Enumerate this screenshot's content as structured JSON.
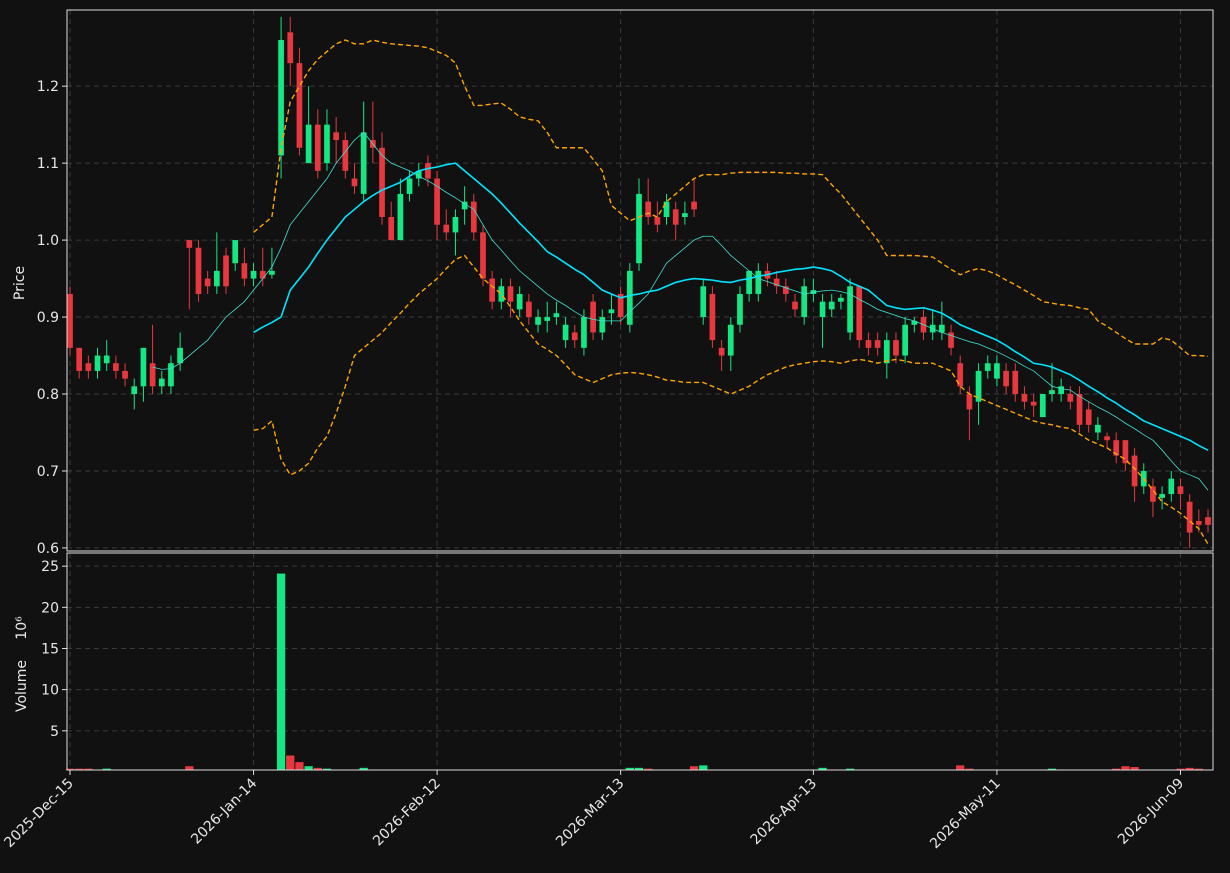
{
  "chart_data": {
    "type": "candlestick",
    "ylabel": "Price",
    "volume_label": "Volume",
    "volume_scale": "10⁶",
    "up_color": "#14e884",
    "down_color": "#e8383f",
    "grid": true,
    "ylim": [
      0.596,
      1.299
    ],
    "yticks": [
      0.6,
      0.7,
      0.8,
      0.9,
      {
        "value": 1,
        "label": "1.0"
      },
      1.1,
      1.2
    ],
    "volume_ylim": [
      0.24,
      26.6
    ],
    "volume_yticks": [
      5,
      10,
      15,
      20,
      25
    ],
    "categories": [
      "2025-Dec-15",
      null,
      null,
      null,
      null,
      null,
      null,
      null,
      null,
      null,
      null,
      null,
      null,
      null,
      null,
      null,
      null,
      null,
      null,
      null,
      "2026-Jan-14",
      null,
      null,
      null,
      null,
      null,
      null,
      null,
      null,
      null,
      null,
      null,
      null,
      null,
      null,
      null,
      null,
      null,
      null,
      null,
      "2026-Feb-12",
      null,
      null,
      null,
      null,
      null,
      null,
      null,
      null,
      null,
      null,
      null,
      null,
      null,
      null,
      null,
      null,
      null,
      null,
      null,
      "2026-Mar-13",
      null,
      null,
      null,
      null,
      null,
      null,
      null,
      null,
      null,
      null,
      null,
      null,
      null,
      null,
      null,
      null,
      null,
      null,
      null,
      null,
      "2026-Apr-13",
      null,
      null,
      null,
      null,
      null,
      null,
      null,
      null,
      null,
      null,
      null,
      null,
      null,
      null,
      null,
      null,
      null,
      null,
      null,
      "2026-May-11",
      null,
      null,
      null,
      null,
      null,
      null,
      null,
      null,
      null,
      null,
      null,
      null,
      null,
      null,
      null,
      null,
      null,
      null,
      null,
      "2026-Jun-09",
      null,
      null,
      null
    ],
    "open": [
      0.93,
      0.86,
      0.84,
      0.83,
      0.84,
      0.84,
      0.83,
      0.8,
      0.81,
      0.84,
      0.81,
      0.81,
      0.84,
      1.0,
      0.99,
      0.95,
      0.94,
      0.98,
      0.97,
      0.97,
      0.95,
      0.96,
      0.955,
      1.11,
      1.27,
      1.23,
      1.1,
      1.15,
      1.1,
      1.14,
      1.13,
      1.08,
      1.06,
      1.13,
      1.12,
      1.03,
      1.0,
      1.06,
      1.08,
      1.1,
      1.08,
      1.02,
      1.01,
      1.04,
      1.05,
      1.01,
      0.95,
      0.92,
      0.94,
      0.91,
      0.92,
      0.89,
      0.895,
      0.9,
      0.87,
      0.88,
      0.86,
      0.92,
      0.88,
      0.905,
      0.93,
      0.89,
      0.97,
      1.05,
      1.03,
      1.03,
      1.04,
      1.03,
      1.05,
      0.9,
      0.93,
      0.86,
      0.85,
      0.89,
      0.93,
      0.93,
      0.96,
      0.95,
      0.94,
      0.92,
      0.9,
      0.93,
      0.9,
      0.91,
      0.92,
      0.88,
      0.94,
      0.87,
      0.87,
      0.84,
      0.87,
      0.85,
      0.89,
      0.9,
      0.88,
      0.88,
      0.88,
      0.84,
      0.8,
      0.79,
      0.83,
      0.82,
      0.83,
      0.83,
      0.8,
      0.79,
      0.77,
      0.8,
      0.8,
      0.8,
      0.8,
      0.78,
      0.75,
      0.745,
      0.74,
      0.74,
      0.72,
      0.68,
      0.68,
      0.665,
      0.67,
      0.68,
      0.66,
      0.635,
      0.64
    ],
    "high": [
      0.94,
      0.86,
      0.85,
      0.86,
      0.87,
      0.85,
      0.84,
      0.82,
      0.86,
      0.89,
      0.83,
      0.85,
      0.88,
      1.0,
      1.0,
      0.96,
      1.01,
      0.99,
      1.0,
      0.99,
      0.97,
      0.99,
      0.99,
      1.29,
      1.29,
      1.25,
      1.2,
      1.17,
      1.17,
      1.16,
      1.14,
      1.1,
      1.18,
      1.18,
      1.14,
      1.05,
      1.08,
      1.09,
      1.1,
      1.11,
      1.09,
      1.04,
      1.04,
      1.07,
      1.06,
      1.02,
      0.96,
      0.95,
      0.95,
      0.94,
      0.93,
      0.91,
      0.92,
      0.92,
      0.9,
      0.89,
      0.91,
      0.93,
      0.91,
      0.93,
      0.94,
      0.97,
      1.08,
      1.08,
      1.05,
      1.06,
      1.05,
      1.05,
      1.08,
      0.95,
      0.94,
      0.87,
      0.9,
      0.94,
      0.96,
      0.97,
      0.97,
      0.96,
      0.95,
      0.93,
      0.95,
      0.95,
      0.93,
      0.93,
      0.93,
      0.95,
      0.94,
      0.88,
      0.88,
      0.88,
      0.88,
      0.9,
      0.9,
      0.91,
      0.91,
      0.92,
      0.89,
      0.85,
      0.81,
      0.84,
      0.85,
      0.85,
      0.84,
      0.84,
      0.81,
      0.8,
      0.8,
      0.84,
      0.82,
      0.81,
      0.81,
      0.79,
      0.77,
      0.75,
      0.75,
      0.74,
      0.73,
      0.71,
      0.69,
      0.68,
      0.7,
      0.69,
      0.67,
      0.65,
      0.65
    ],
    "low": [
      0.85,
      0.82,
      0.82,
      0.82,
      0.83,
      0.82,
      0.81,
      0.78,
      0.79,
      0.8,
      0.8,
      0.8,
      0.83,
      0.91,
      0.92,
      0.93,
      0.93,
      0.93,
      0.96,
      0.94,
      0.94,
      0.94,
      0.95,
      1.08,
      1.2,
      1.11,
      1.1,
      1.08,
      1.09,
      1.1,
      1.08,
      1.06,
      1.05,
      1.1,
      1.02,
      1.0,
      1.0,
      1.05,
      1.07,
      1.07,
      1.0,
      1.0,
      0.98,
      1.02,
      1.0,
      0.94,
      0.91,
      0.91,
      0.9,
      0.9,
      0.89,
      0.88,
      0.88,
      0.89,
      0.86,
      0.86,
      0.85,
      0.87,
      0.87,
      0.89,
      0.89,
      0.88,
      0.96,
      1.02,
      1.01,
      1.02,
      1.0,
      1.02,
      1.03,
      0.89,
      0.86,
      0.83,
      0.83,
      0.88,
      0.92,
      0.92,
      0.94,
      0.93,
      0.92,
      0.9,
      0.89,
      0.92,
      0.86,
      0.9,
      0.91,
      0.87,
      0.86,
      0.85,
      0.85,
      0.82,
      0.84,
      0.84,
      0.88,
      0.87,
      0.87,
      0.87,
      0.85,
      0.8,
      0.74,
      0.76,
      0.82,
      0.81,
      0.8,
      0.79,
      0.78,
      0.77,
      0.77,
      0.79,
      0.79,
      0.78,
      0.75,
      0.75,
      0.74,
      0.73,
      0.71,
      0.7,
      0.66,
      0.67,
      0.64,
      0.65,
      0.66,
      0.65,
      0.6,
      0.62,
      0.62
    ],
    "close": [
      0.86,
      0.83,
      0.83,
      0.85,
      0.85,
      0.83,
      0.82,
      0.81,
      0.86,
      0.81,
      0.82,
      0.84,
      0.86,
      0.99,
      0.93,
      0.94,
      0.96,
      0.94,
      1.0,
      0.95,
      0.96,
      0.95,
      0.96,
      1.26,
      1.23,
      1.12,
      1.15,
      1.09,
      1.15,
      1.13,
      1.09,
      1.07,
      1.14,
      1.12,
      1.03,
      1.0,
      1.06,
      1.08,
      1.09,
      1.08,
      1.02,
      1.01,
      1.03,
      1.05,
      1.01,
      0.95,
      0.92,
      0.94,
      0.92,
      0.93,
      0.9,
      0.9,
      0.9,
      0.905,
      0.89,
      0.87,
      0.9,
      0.88,
      0.9,
      0.91,
      0.9,
      0.96,
      1.06,
      1.03,
      1.02,
      1.05,
      1.02,
      1.035,
      1.04,
      0.94,
      0.87,
      0.85,
      0.89,
      0.93,
      0.96,
      0.96,
      0.95,
      0.94,
      0.93,
      0.91,
      0.94,
      0.935,
      0.92,
      0.92,
      0.925,
      0.94,
      0.87,
      0.86,
      0.86,
      0.87,
      0.85,
      0.89,
      0.895,
      0.88,
      0.89,
      0.89,
      0.86,
      0.81,
      0.78,
      0.83,
      0.84,
      0.84,
      0.81,
      0.8,
      0.79,
      0.785,
      0.8,
      0.805,
      0.81,
      0.79,
      0.76,
      0.76,
      0.76,
      0.74,
      0.72,
      0.71,
      0.68,
      0.7,
      0.66,
      0.67,
      0.69,
      0.67,
      0.62,
      0.63,
      0.63
    ],
    "volume": [
      0.4,
      0.4,
      0.4,
      0.2,
      0.4,
      0.1,
      0.1,
      0.2,
      0.2,
      0.2,
      0.2,
      0.2,
      0.1,
      0.7,
      0.1,
      0.05,
      0.2,
      0.05,
      0.2,
      0.05,
      0.05,
      0.05,
      0.05,
      24.1,
      2.0,
      1.2,
      0.7,
      0.5,
      0.4,
      0.3,
      0.3,
      0.2,
      0.5,
      0.3,
      0.3,
      0.3,
      0.2,
      0.1,
      0.1,
      0.2,
      0.2,
      0.1,
      0.2,
      0.3,
      0.2,
      0.3,
      0.2,
      0.1,
      0.2,
      0.1,
      0.2,
      0.2,
      0.2,
      0.2,
      0.2,
      0.2,
      0.3,
      0.3,
      0.2,
      0.1,
      0.3,
      0.5,
      0.5,
      0.4,
      0.1,
      0.2,
      0.1,
      0.3,
      0.7,
      0.8,
      0.3,
      0.1,
      0.05,
      0.05,
      0.05,
      0.05,
      0.05,
      0.05,
      0.05,
      0.05,
      0.05,
      0.05,
      0.5,
      0.1,
      0.2,
      0.4,
      0.3,
      0.1,
      0.2,
      0.1,
      0.2,
      0.1,
      0.2,
      0.1,
      0.2,
      0.1,
      0.3,
      0.8,
      0.4,
      0.1,
      0.2,
      0.1,
      0.1,
      0.3,
      0.1,
      0.1,
      0.2,
      0.4,
      0.1,
      0.2,
      0.3,
      0.2,
      0.3,
      0.3,
      0.4,
      0.7,
      0.6,
      0.3,
      0.3,
      0.3,
      0.3,
      0.4,
      0.5,
      0.4,
      0.3
    ],
    "series": [
      {
        "color": "#40e0d0",
        "line_width": 0.8,
        "values": [
          null,
          null,
          null,
          null,
          null,
          null,
          null,
          null,
          null,
          0.835,
          0.832,
          0.833,
          0.84,
          0.85,
          0.86,
          0.87,
          0.885,
          0.9,
          0.91,
          0.92,
          0.935,
          0.95,
          0.965,
          0.99,
          1.02,
          1.035,
          1.05,
          1.065,
          1.08,
          1.1,
          1.115,
          1.13,
          1.14,
          1.125,
          1.11,
          1.1,
          1.095,
          1.09,
          1.083,
          1.077,
          1.07,
          1.062,
          1.055,
          1.047,
          1.04,
          1.02,
          1.0,
          0.987,
          0.973,
          0.96,
          0.95,
          0.94,
          0.93,
          0.922,
          0.915,
          0.907,
          0.9,
          0.897,
          0.895,
          0.895,
          0.895,
          0.907,
          0.918,
          0.93,
          0.95,
          0.97,
          0.98,
          0.99,
          1.0,
          1.005,
          1.005,
          0.993,
          0.98,
          0.97,
          0.96,
          0.95,
          0.946,
          0.942,
          0.938,
          0.934,
          0.93,
          0.932,
          0.934,
          0.935,
          0.933,
          0.93,
          0.923,
          0.917,
          0.91,
          0.906,
          0.902,
          0.898,
          0.895,
          0.89,
          0.885,
          0.88,
          0.876,
          0.872,
          0.868,
          0.865,
          0.86,
          0.855,
          0.849,
          0.843,
          0.836,
          0.83,
          0.82,
          0.81,
          0.807,
          0.805,
          0.797,
          0.79,
          0.783,
          0.777,
          0.77,
          0.762,
          0.755,
          0.747,
          0.74,
          0.727,
          0.713,
          0.7,
          0.695,
          0.69,
          0.675
        ]
      },
      {
        "color": "#00e5ff",
        "line_width": 1.6,
        "values": [
          null,
          null,
          null,
          null,
          null,
          null,
          null,
          null,
          null,
          null,
          null,
          null,
          null,
          null,
          null,
          null,
          null,
          null,
          null,
          null,
          0.88,
          0.887,
          0.893,
          0.9,
          0.935,
          0.95,
          0.965,
          0.983,
          1.0,
          1.015,
          1.03,
          1.04,
          1.05,
          1.058,
          1.065,
          1.07,
          1.075,
          1.083,
          1.09,
          1.093,
          1.095,
          1.098,
          1.1,
          1.09,
          1.08,
          1.07,
          1.06,
          1.048,
          1.035,
          1.022,
          1.01,
          0.998,
          0.985,
          0.978,
          0.97,
          0.962,
          0.955,
          0.945,
          0.935,
          0.93,
          0.925,
          0.928,
          0.93,
          0.933,
          0.935,
          0.94,
          0.945,
          0.948,
          0.95,
          0.949,
          0.948,
          0.946,
          0.945,
          0.948,
          0.95,
          0.953,
          0.955,
          0.958,
          0.96,
          0.962,
          0.963,
          0.965,
          0.963,
          0.96,
          0.953,
          0.945,
          0.94,
          0.935,
          0.925,
          0.915,
          0.912,
          0.91,
          0.911,
          0.912,
          0.909,
          0.905,
          0.898,
          0.89,
          0.885,
          0.88,
          0.875,
          0.87,
          0.863,
          0.855,
          0.848,
          0.84,
          0.838,
          0.835,
          0.83,
          0.825,
          0.818,
          0.81,
          0.803,
          0.795,
          0.788,
          0.78,
          0.773,
          0.765,
          0.76,
          0.755,
          0.75,
          0.745,
          0.74,
          0.733,
          0.727
        ]
      },
      {
        "color": "#ffa500",
        "line_width": 1.4,
        "dashed": true,
        "values": [
          null,
          null,
          null,
          null,
          null,
          null,
          null,
          null,
          null,
          null,
          null,
          null,
          null,
          null,
          null,
          null,
          null,
          null,
          null,
          null,
          1.01,
          1.02,
          1.03,
          1.12,
          1.18,
          1.2,
          1.22,
          1.235,
          1.245,
          1.255,
          1.26,
          1.255,
          1.255,
          1.26,
          1.257,
          1.255,
          1.254,
          1.253,
          1.252,
          1.25,
          1.245,
          1.24,
          1.23,
          1.2,
          1.175,
          1.175,
          1.177,
          1.178,
          1.17,
          1.16,
          1.157,
          1.155,
          1.14,
          1.12,
          1.12,
          1.12,
          1.12,
          1.105,
          1.09,
          1.045,
          1.035,
          1.025,
          1.03,
          1.035,
          1.03,
          1.05,
          1.06,
          1.07,
          1.08,
          1.085,
          1.085,
          1.085,
          1.087,
          1.088,
          1.088,
          1.088,
          1.088,
          1.088,
          1.087,
          1.087,
          1.086,
          1.086,
          1.085,
          1.072,
          1.06,
          1.045,
          1.03,
          1.015,
          1.0,
          0.98,
          0.98,
          0.98,
          0.98,
          0.979,
          0.978,
          0.97,
          0.962,
          0.955,
          0.96,
          0.963,
          0.96,
          0.955,
          0.948,
          0.942,
          0.935,
          0.928,
          0.92,
          0.918,
          0.916,
          0.915,
          0.912,
          0.91,
          0.895,
          0.888,
          0.88,
          0.872,
          0.865,
          0.865,
          0.865,
          0.873,
          0.87,
          0.86,
          0.85,
          0.85,
          0.849
        ]
      },
      {
        "color": "#ffa500",
        "line_width": 1.4,
        "dashed": true,
        "values": [
          null,
          null,
          null,
          null,
          null,
          null,
          null,
          null,
          null,
          null,
          null,
          null,
          null,
          null,
          null,
          null,
          null,
          null,
          null,
          null,
          0.753,
          0.755,
          0.765,
          0.715,
          0.695,
          0.7,
          0.71,
          0.73,
          0.745,
          0.775,
          0.81,
          0.85,
          0.86,
          0.87,
          0.88,
          0.893,
          0.905,
          0.918,
          0.93,
          0.94,
          0.95,
          0.963,
          0.975,
          0.98,
          0.965,
          0.95,
          0.94,
          0.93,
          0.913,
          0.895,
          0.88,
          0.865,
          0.858,
          0.85,
          0.838,
          0.825,
          0.82,
          0.815,
          0.82,
          0.825,
          0.827,
          0.828,
          0.827,
          0.825,
          0.822,
          0.818,
          0.817,
          0.815,
          0.815,
          0.815,
          0.81,
          0.805,
          0.8,
          0.805,
          0.81,
          0.818,
          0.825,
          0.83,
          0.835,
          0.838,
          0.84,
          0.842,
          0.843,
          0.842,
          0.84,
          0.843,
          0.845,
          0.843,
          0.84,
          0.843,
          0.845,
          0.843,
          0.84,
          0.84,
          0.84,
          0.835,
          0.83,
          0.81,
          0.8,
          0.795,
          0.79,
          0.785,
          0.78,
          0.775,
          0.77,
          0.765,
          0.762,
          0.76,
          0.757,
          0.755,
          0.748,
          0.74,
          0.735,
          0.73,
          0.722,
          0.715,
          0.703,
          0.69,
          0.675,
          0.66,
          0.653,
          0.645,
          0.635,
          0.625,
          0.605
        ]
      }
    ]
  }
}
